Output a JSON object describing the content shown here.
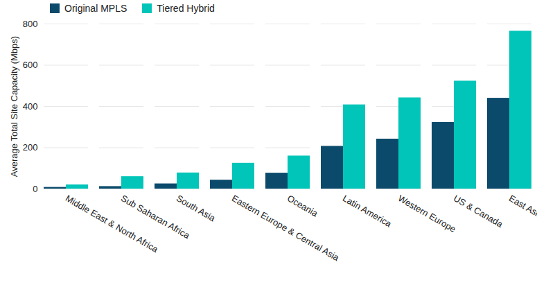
{
  "chart_data": {
    "type": "bar",
    "ylabel": "Average Total Site Capacity (Mbps)",
    "categories": [
      "Middle East & North Africa",
      "Sub Saharan Africa",
      "South Asia",
      "Eastern Europe & Central Asia",
      "Oceania",
      "Latin America",
      "Western Europe",
      "US & Canada",
      "East Asia"
    ],
    "series": [
      {
        "name": "Original MPLS",
        "color": "#0b4a6b",
        "values": [
          8,
          12,
          25,
          43,
          77,
          207,
          242,
          323,
          440
        ]
      },
      {
        "name": "Tiered Hybrid",
        "color": "#00c5b8",
        "values": [
          20,
          60,
          78,
          125,
          160,
          408,
          442,
          523,
          765
        ]
      }
    ],
    "ylim": [
      0,
      800
    ],
    "yticks": [
      0,
      200,
      400,
      600,
      800
    ],
    "grid": true,
    "legend": "top-left"
  }
}
